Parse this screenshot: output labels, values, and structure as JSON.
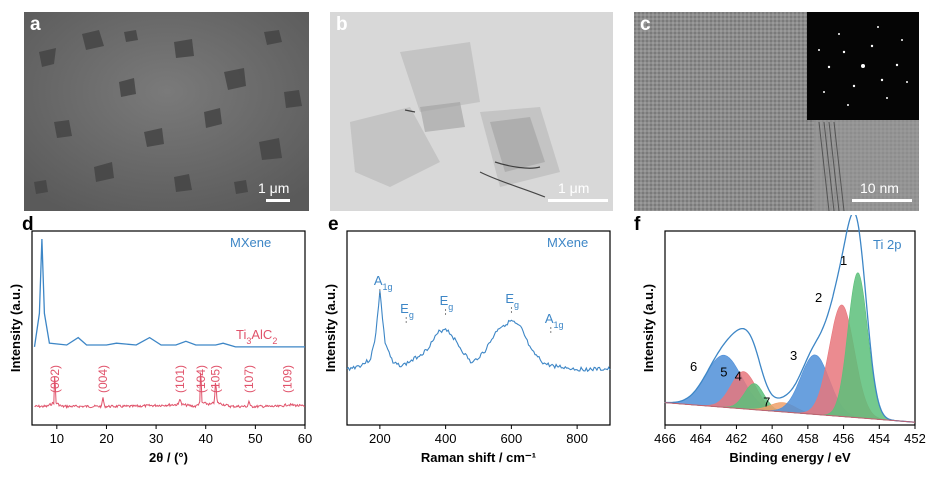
{
  "panels": {
    "a": {
      "label": "a",
      "scale": "1 μm"
    },
    "b": {
      "label": "b",
      "scale": "1 μm"
    },
    "c": {
      "label": "c",
      "scale": "10 nm"
    },
    "d": {
      "label": "d"
    },
    "e": {
      "label": "e"
    },
    "f": {
      "label": "f"
    }
  },
  "colors": {
    "mxene": "#3d86c6",
    "max": "#e0526a",
    "green": "#5cc07a",
    "red": "#e8777c",
    "orange": "#f0a06a",
    "blue": "#4f8fd8"
  },
  "chart_data": [
    {
      "type": "line",
      "panel": "d",
      "xlabel": "2θ / (°)",
      "ylabel": "Intensity (a.u.)",
      "xlim": [
        5,
        60
      ],
      "xticks": [
        10,
        20,
        30,
        40,
        50,
        60
      ],
      "series": [
        {
          "name": "MXene",
          "x": [
            5.5,
            6.5,
            7,
            7.5,
            8.5,
            12,
            14.3,
            16,
            20,
            22,
            26,
            28.7,
            31,
            34,
            36,
            38,
            42,
            43.5,
            46,
            50,
            54,
            58,
            60
          ],
          "values": [
            0.42,
            0.6,
            1.0,
            0.6,
            0.44,
            0.43,
            0.47,
            0.43,
            0.43,
            0.44,
            0.43,
            0.47,
            0.43,
            0.43,
            0.45,
            0.43,
            0.43,
            0.44,
            0.42,
            0.42,
            0.42,
            0.42,
            0.42
          ]
        },
        {
          "name": "Ti3AlC2",
          "x": [
            5.5,
            8,
            9.4,
            9.6,
            9.8,
            11,
            19,
            19.3,
            19.6,
            25,
            34.5,
            34.8,
            35.1,
            38,
            38.8,
            39,
            39.2,
            41,
            41.7,
            42,
            42.3,
            45,
            48.4,
            48.7,
            49,
            55,
            56.5,
            60
          ],
          "values": [
            0.1,
            0.1,
            0.12,
            0.3,
            0.12,
            0.1,
            0.1,
            0.15,
            0.1,
            0.1,
            0.11,
            0.15,
            0.11,
            0.1,
            0.12,
            0.33,
            0.12,
            0.11,
            0.12,
            0.24,
            0.12,
            0.1,
            0.1,
            0.13,
            0.1,
            0.1,
            0.11,
            0.1
          ]
        }
      ],
      "annotations": [
        {
          "text": "MXene",
          "color": "#3d86c6"
        },
        {
          "text": "Ti",
          "sub": "3",
          "tail": "AlC",
          "sub2": "2",
          "color": "#e0526a"
        },
        {
          "text": "(002)",
          "x": 9.6
        },
        {
          "text": "(004)",
          "x": 19.3
        },
        {
          "text": "(101)",
          "x": 34.8
        },
        {
          "text": "(104)",
          "x": 39
        },
        {
          "text": "(105)",
          "x": 42
        },
        {
          "text": "(107)",
          "x": 48.7
        },
        {
          "text": "(109)",
          "x": 56.5
        }
      ]
    },
    {
      "type": "line",
      "panel": "e",
      "xlabel": "Raman shift / cm⁻¹",
      "ylabel": "Intensity (a.u.)",
      "xlim": [
        100,
        900
      ],
      "xticks": [
        200,
        400,
        600,
        800
      ],
      "series": [
        {
          "name": "MXene",
          "x": [
            100,
            140,
            170,
            185,
            200,
            215,
            240,
            270,
            300,
            340,
            380,
            400,
            420,
            450,
            480,
            520,
            560,
            600,
            630,
            660,
            700,
            720,
            760,
            800,
            860,
            900
          ],
          "values": [
            0.3,
            0.32,
            0.35,
            0.45,
            0.72,
            0.45,
            0.33,
            0.32,
            0.35,
            0.4,
            0.5,
            0.52,
            0.48,
            0.4,
            0.33,
            0.4,
            0.52,
            0.56,
            0.52,
            0.4,
            0.33,
            0.32,
            0.31,
            0.3,
            0.3,
            0.3
          ]
        }
      ],
      "annotations": [
        {
          "text": "MXene",
          "color": "#3d86c6"
        },
        {
          "text": "A",
          "sub": "1g",
          "x": 200
        },
        {
          "text": "E",
          "sub": "g",
          "x": 280
        },
        {
          "text": "E",
          "sub": "g",
          "x": 400
        },
        {
          "text": "E",
          "sub": "g",
          "x": 600
        },
        {
          "text": "A",
          "sub": "1g",
          "x": 720
        }
      ]
    },
    {
      "type": "area",
      "panel": "f",
      "xlabel": "Binding energy / eV",
      "ylabel": "Intensity (a.u.)",
      "xlim": [
        466,
        452
      ],
      "xticks": [
        466,
        464,
        462,
        460,
        458,
        456,
        454,
        452
      ],
      "title": "Ti 2p",
      "peaks": [
        {
          "label": "1",
          "center": 455.2,
          "height": 0.78,
          "width": 0.55,
          "color": "#5cc07a"
        },
        {
          "label": "2",
          "center": 456.1,
          "height": 0.6,
          "width": 0.7,
          "color": "#e8777c"
        },
        {
          "label": "3",
          "center": 457.6,
          "height": 0.32,
          "width": 0.8,
          "color": "#4f8fd8"
        },
        {
          "label": "4",
          "center": 461.0,
          "height": 0.14,
          "width": 0.55,
          "color": "#5cc07a"
        },
        {
          "label": "5",
          "center": 461.6,
          "height": 0.2,
          "width": 0.7,
          "color": "#e8777c"
        },
        {
          "label": "6",
          "center": 462.7,
          "height": 0.28,
          "width": 1.0,
          "color": "#4f8fd8"
        },
        {
          "label": "7",
          "center": 459.4,
          "height": 0.05,
          "width": 0.7,
          "color": "#f0a06a"
        }
      ]
    }
  ]
}
